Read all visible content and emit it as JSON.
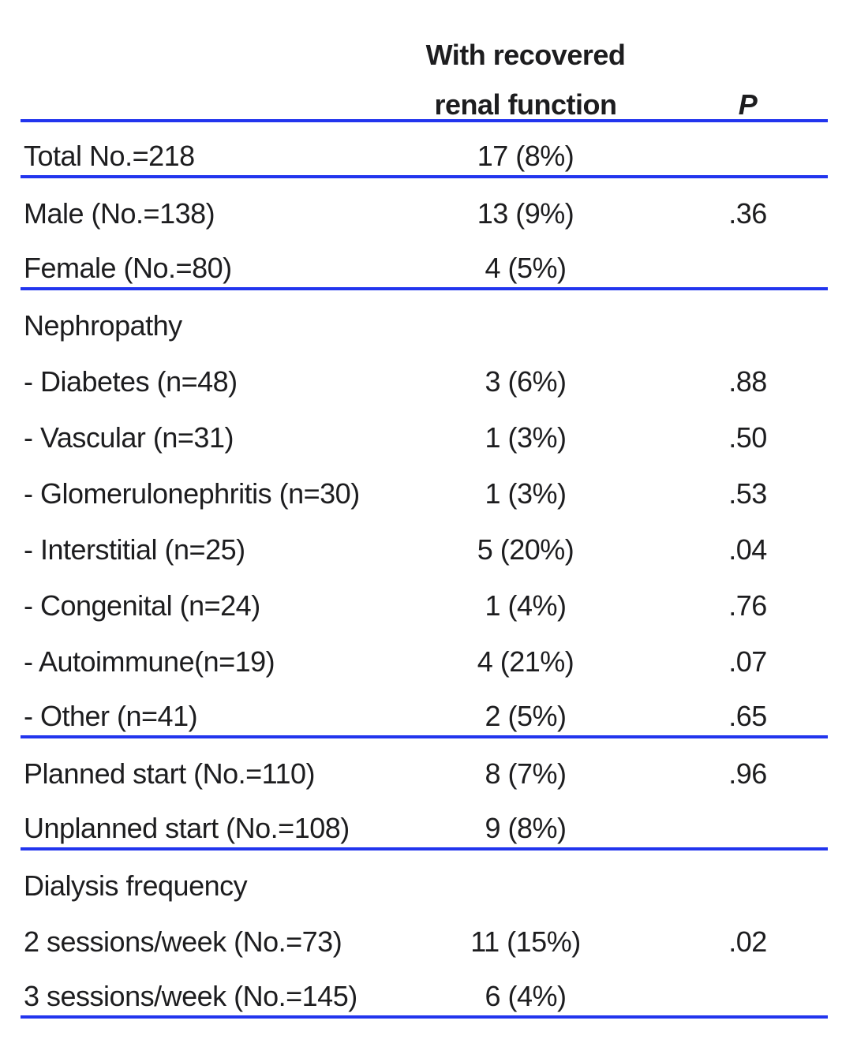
{
  "colors": {
    "rule": "#2235ee",
    "text": "#1d1d1f",
    "background": "#ffffff"
  },
  "table": {
    "header": {
      "line1": "With recovered",
      "line2": "renal function",
      "p": "P"
    },
    "rows": [
      {
        "label": "Total No.=218",
        "value": "17 (8%)",
        "p": "",
        "section": false,
        "rule_after": true
      },
      {
        "label": "Male (No.=138)",
        "value": "13 (9%)",
        "p": ".36",
        "section": false,
        "rule_after": false
      },
      {
        "label": "Female (No.=80)",
        "value": "4 (5%)",
        "p": "",
        "section": false,
        "rule_after": true
      },
      {
        "label": "Nephropathy",
        "value": "",
        "p": "",
        "section": true,
        "rule_after": false
      },
      {
        "label": "- Diabetes (n=48)",
        "value": "3 (6%)",
        "p": ".88",
        "section": false,
        "rule_after": false
      },
      {
        "label": "- Vascular (n=31)",
        "value": "1 (3%)",
        "p": ".50",
        "section": false,
        "rule_after": false
      },
      {
        "label": "- Glomerulonephritis (n=30)",
        "value": "1 (3%)",
        "p": ".53",
        "section": false,
        "rule_after": false
      },
      {
        "label": "- Interstitial (n=25)",
        "value": "5 (20%)",
        "p": ".04",
        "section": false,
        "rule_after": false
      },
      {
        "label": "- Congenital (n=24)",
        "value": "1 (4%)",
        "p": ".76",
        "section": false,
        "rule_after": false
      },
      {
        "label": "- Autoimmune(n=19)",
        "value": "4 (21%)",
        "p": ".07",
        "section": false,
        "rule_after": false
      },
      {
        "label": "- Other (n=41)",
        "value": "2 (5%)",
        "p": ".65",
        "section": false,
        "rule_after": true
      },
      {
        "label": "Planned start (No.=110)",
        "value": "8 (7%)",
        "p": ".96",
        "section": false,
        "rule_after": false
      },
      {
        "label": "Unplanned start (No.=108)",
        "value": "9 (8%)",
        "p": "",
        "section": false,
        "rule_after": true
      },
      {
        "label": "Dialysis frequency",
        "value": "",
        "p": "",
        "section": true,
        "rule_after": false
      },
      {
        "label": "2 sessions/week (No.=73)",
        "value": "11 (15%)",
        "p": ".02",
        "section": false,
        "rule_after": false
      },
      {
        "label": "3 sessions/week (No.=145)",
        "value": "6 (4%)",
        "p": "",
        "section": false,
        "rule_after": true
      }
    ]
  }
}
